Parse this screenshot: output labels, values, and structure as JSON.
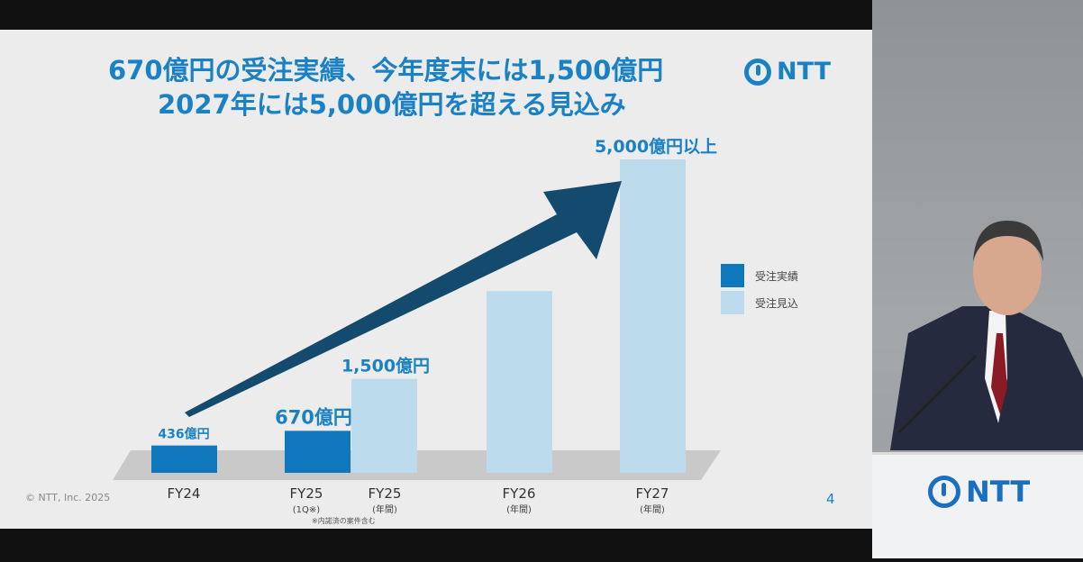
{
  "slide": {
    "title_line1": "670億円の受注実績、今年度末には1,500億円",
    "title_line2": "2027年には5,000億円を超える見込み",
    "logo_text": "NTT",
    "copyright": "© NTT, Inc.  2025",
    "page_number": "4",
    "footnote": "※内諾済の案件含む"
  },
  "podium": {
    "logo_text": "NTT"
  },
  "chart_data": {
    "type": "bar",
    "categories": [
      "FY24",
      "FY25",
      "FY25",
      "FY26",
      "FY27"
    ],
    "sublabels": [
      "",
      "(1Q※)",
      "(年間)",
      "(年間)",
      "(年間)"
    ],
    "values": [
      436,
      670,
      1500,
      2900,
      5000
    ],
    "data_labels": [
      "436億円",
      "670億円",
      "1,500億円",
      "",
      "5,000億円以上"
    ],
    "series_type": [
      "actual",
      "actual",
      "forecast",
      "forecast",
      "forecast"
    ],
    "legend": [
      {
        "name": "受注実績",
        "color": "#0f77bb"
      },
      {
        "name": "受注見込",
        "color": "#bcdcee"
      }
    ],
    "legend_position": "right",
    "trend_arrow_color": "#134a6e",
    "grid": false
  }
}
